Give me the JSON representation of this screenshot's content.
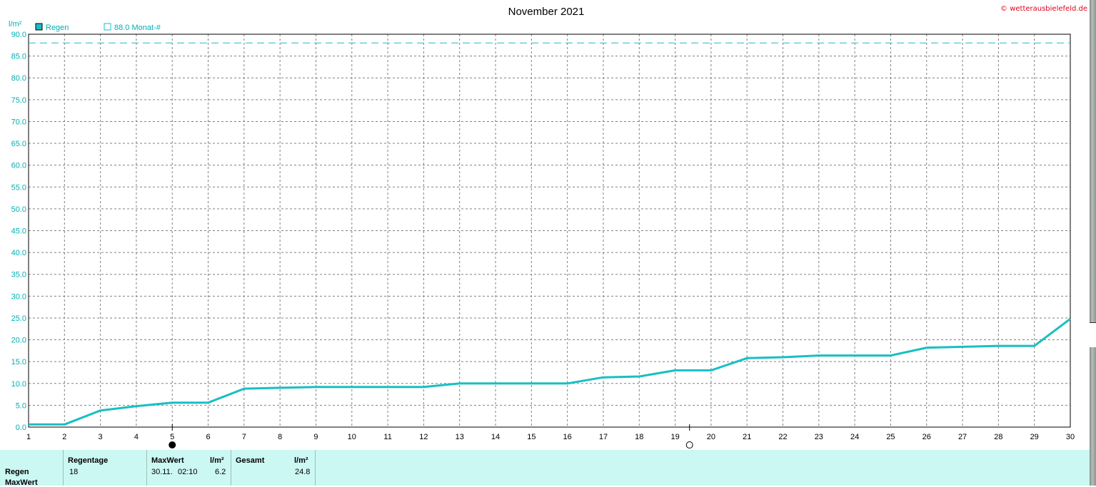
{
  "colors": {
    "series": "#18bfc3",
    "axis_text": "#00b0b4",
    "grid": "#808080",
    "copyright": "#e0001b",
    "stats_bg": "#ccf8f4"
  },
  "copyright": "© wetterausbielefeld.de",
  "moon_phases": [
    {
      "day": 5,
      "icon": "new-moon-icon"
    },
    {
      "day": 19.4,
      "icon": "full-moon-icon"
    }
  ],
  "chart_data": {
    "type": "line",
    "title": "November 2021",
    "ylabel": "l/m²",
    "xlabel": "",
    "x_ticks": [
      1,
      2,
      3,
      4,
      5,
      6,
      7,
      8,
      9,
      10,
      11,
      12,
      13,
      14,
      15,
      16,
      17,
      18,
      19,
      20,
      21,
      22,
      23,
      24,
      25,
      26,
      27,
      28,
      29,
      30
    ],
    "y_ticks": [
      "0.0",
      "5.0",
      "10.0",
      "15.0",
      "20.0",
      "25.0",
      "30.0",
      "35.0",
      "40.0",
      "45.0",
      "50.0",
      "55.0",
      "60.0",
      "65.0",
      "70.0",
      "75.0",
      "80.0",
      "85.0",
      "90.0"
    ],
    "xlim": [
      1,
      30
    ],
    "ylim": [
      0,
      90
    ],
    "grid": true,
    "legend": [
      "Regen",
      "88.0 Monat-#"
    ],
    "series": [
      {
        "name": "Regen",
        "x": [
          1,
          2,
          3,
          4,
          5,
          6,
          7,
          8,
          9,
          10,
          11,
          12,
          13,
          14,
          15,
          16,
          17,
          18,
          19,
          20,
          21,
          22,
          23,
          24,
          25,
          26,
          27,
          28,
          29,
          30
        ],
        "values": [
          0.6,
          0.6,
          3.8,
          4.8,
          5.6,
          5.6,
          8.8,
          9.0,
          9.2,
          9.2,
          9.2,
          9.2,
          10.0,
          10.0,
          10.0,
          10.0,
          11.4,
          11.6,
          13.0,
          13.0,
          15.8,
          16.0,
          16.4,
          16.4,
          16.4,
          18.2,
          18.4,
          18.6,
          18.6,
          24.8
        ]
      },
      {
        "name": "88.0 Monat-#",
        "x": [
          1,
          30
        ],
        "values": [
          88.0,
          88.0
        ],
        "style": "dashed"
      }
    ]
  },
  "stats": {
    "row_labels": [
      "Regen",
      "MaxWert"
    ],
    "regentage": {
      "header": "Regentage",
      "value": "18"
    },
    "maxwert": {
      "header": "MaxWert",
      "unit": "l/m²",
      "date": "30.11.",
      "time": "02:10",
      "value": "6.2"
    },
    "gesamt": {
      "header": "Gesamt",
      "unit": "l/m²",
      "value": "24.8"
    }
  }
}
